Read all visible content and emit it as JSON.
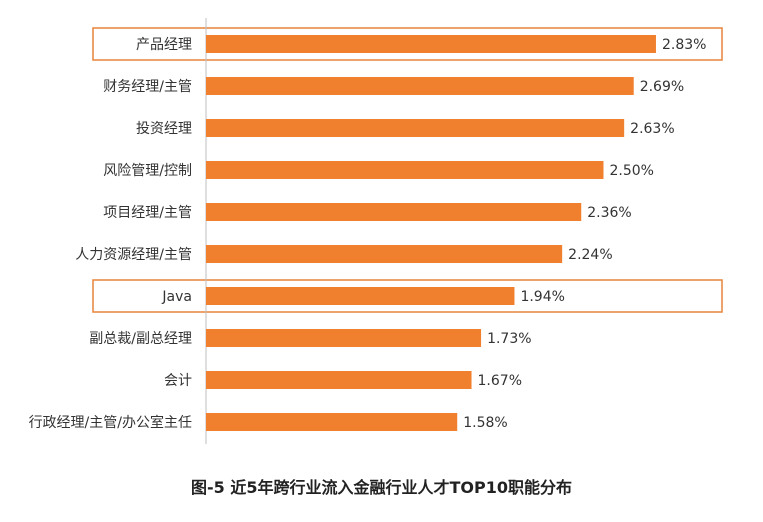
{
  "chart_data": {
    "type": "bar",
    "orientation": "horizontal",
    "title": "图-5 近5年跨行业流入金融行业人才TOP10职能分布",
    "categories": [
      "产品经理",
      "财务经理/主管",
      "投资经理",
      "风险管理/控制",
      "项目经理/主管",
      "人力资源经理/主管",
      "Java",
      "副总裁/副总经理",
      "会计",
      "行政经理/主管/办公室主任"
    ],
    "values": [
      2.83,
      2.69,
      2.63,
      2.5,
      2.36,
      2.24,
      1.94,
      1.73,
      1.67,
      1.58
    ],
    "value_labels": [
      "2.83%",
      "2.69%",
      "2.63%",
      "2.50%",
      "2.36%",
      "2.24%",
      "1.94%",
      "1.73%",
      "1.67%",
      "1.58%"
    ],
    "highlighted": [
      "产品经理",
      "Java"
    ],
    "xlim": [
      0,
      3.0
    ],
    "grid": false,
    "legend": "none",
    "colors": {
      "bar": "#F0802E",
      "highlight_box": "#E8833A",
      "axis": "#bfbfbf",
      "text": "#333333"
    }
  }
}
